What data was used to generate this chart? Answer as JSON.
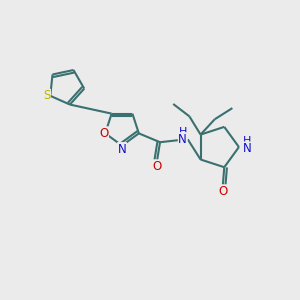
{
  "bg_color": "#ebebeb",
  "bond_color": "#3a7070",
  "S_color": "#b8b800",
  "N_color": "#1010cc",
  "O_color": "#cc0000",
  "line_width": 1.5,
  "font_size": 8.5,
  "fig_w": 3.0,
  "fig_h": 3.0,
  "dpi": 100,
  "xlim": [
    0,
    10
  ],
  "ylim": [
    0,
    10
  ]
}
